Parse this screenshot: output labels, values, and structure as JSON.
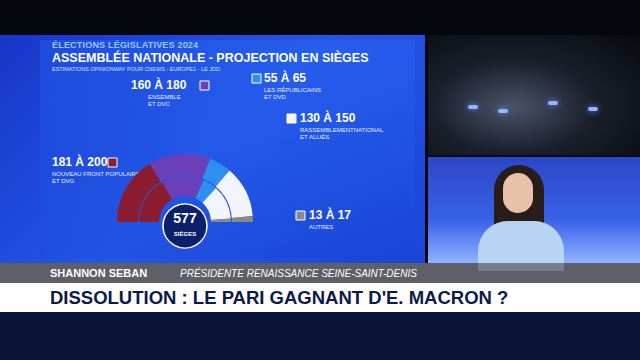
{
  "chart_data": {
    "type": "pie",
    "kicker": "ÉLECTIONS LÉGISLATIVES 2024",
    "title": "ASSEMBLÉE NATIONALE - PROJECTION EN SIÈGES",
    "subtitle": "ESTIMATIONS OPINIONWAY POUR CNEWS - EUROPE1 - LE JDD",
    "categories": [
      [
        "NOUVEAU FRONT POPULAIRE",
        "ET DVG"
      ],
      [
        "ENSEMBLE",
        "ET DVC"
      ],
      [
        "LES RÉPUBLICAINS",
        "ET DVD"
      ],
      [
        "RASSEMBLEMENTNATIONAL",
        "ET ALLIÉS"
      ],
      [
        "AUTRES"
      ]
    ],
    "values_low": [
      181,
      160,
      55,
      130,
      13
    ],
    "values_high": [
      200,
      180,
      65,
      150,
      17
    ],
    "value_labels": [
      "181 À 200",
      "160 À 180",
      "55 À 65",
      "130 À 150",
      "13 À 17"
    ],
    "colors": [
      "#8c1d30",
      "#6b3fb8",
      "#2f8ff0",
      "#f2f4ff",
      "#8a8a8a"
    ],
    "total": 577,
    "total_label": "SIÈGES",
    "data_labels": true
  },
  "page": {
    "speaker": "SHANNON SEBAN",
    "speaker_role": "PRÉSIDENTE RENAISSANCE SEINE-SAINT-DENIS",
    "headline": "DISSOLUTION : LE PARI GAGNANT D'E. MACRON ?"
  }
}
